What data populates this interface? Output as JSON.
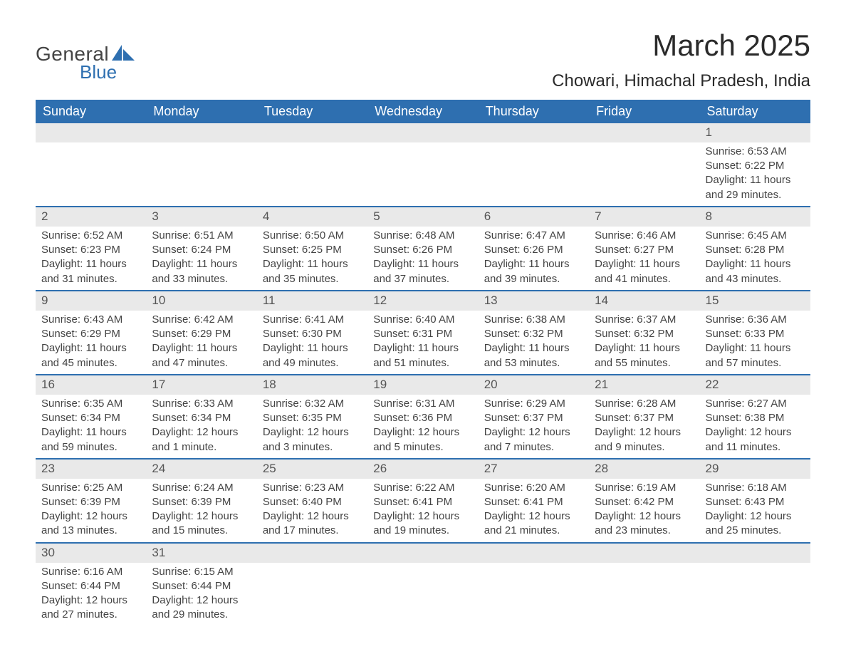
{
  "logo": {
    "text1": "General",
    "text2": "Blue"
  },
  "title": "March 2025",
  "subtitle": "Chowari, Himachal Pradesh, India",
  "colors": {
    "header_bg": "#2e6fb0",
    "header_text": "#ffffff",
    "daynum_bg": "#e9e9e9",
    "row_border": "#2e6fb0",
    "text": "#3a3a3a",
    "logo_blue": "#2e6fb0"
  },
  "weekdays": [
    "Sunday",
    "Monday",
    "Tuesday",
    "Wednesday",
    "Thursday",
    "Friday",
    "Saturday"
  ],
  "weeks": [
    [
      null,
      null,
      null,
      null,
      null,
      null,
      {
        "day": "1",
        "sunrise": "Sunrise: 6:53 AM",
        "sunset": "Sunset: 6:22 PM",
        "daylight1": "Daylight: 11 hours",
        "daylight2": "and 29 minutes."
      }
    ],
    [
      {
        "day": "2",
        "sunrise": "Sunrise: 6:52 AM",
        "sunset": "Sunset: 6:23 PM",
        "daylight1": "Daylight: 11 hours",
        "daylight2": "and 31 minutes."
      },
      {
        "day": "3",
        "sunrise": "Sunrise: 6:51 AM",
        "sunset": "Sunset: 6:24 PM",
        "daylight1": "Daylight: 11 hours",
        "daylight2": "and 33 minutes."
      },
      {
        "day": "4",
        "sunrise": "Sunrise: 6:50 AM",
        "sunset": "Sunset: 6:25 PM",
        "daylight1": "Daylight: 11 hours",
        "daylight2": "and 35 minutes."
      },
      {
        "day": "5",
        "sunrise": "Sunrise: 6:48 AM",
        "sunset": "Sunset: 6:26 PM",
        "daylight1": "Daylight: 11 hours",
        "daylight2": "and 37 minutes."
      },
      {
        "day": "6",
        "sunrise": "Sunrise: 6:47 AM",
        "sunset": "Sunset: 6:26 PM",
        "daylight1": "Daylight: 11 hours",
        "daylight2": "and 39 minutes."
      },
      {
        "day": "7",
        "sunrise": "Sunrise: 6:46 AM",
        "sunset": "Sunset: 6:27 PM",
        "daylight1": "Daylight: 11 hours",
        "daylight2": "and 41 minutes."
      },
      {
        "day": "8",
        "sunrise": "Sunrise: 6:45 AM",
        "sunset": "Sunset: 6:28 PM",
        "daylight1": "Daylight: 11 hours",
        "daylight2": "and 43 minutes."
      }
    ],
    [
      {
        "day": "9",
        "sunrise": "Sunrise: 6:43 AM",
        "sunset": "Sunset: 6:29 PM",
        "daylight1": "Daylight: 11 hours",
        "daylight2": "and 45 minutes."
      },
      {
        "day": "10",
        "sunrise": "Sunrise: 6:42 AM",
        "sunset": "Sunset: 6:29 PM",
        "daylight1": "Daylight: 11 hours",
        "daylight2": "and 47 minutes."
      },
      {
        "day": "11",
        "sunrise": "Sunrise: 6:41 AM",
        "sunset": "Sunset: 6:30 PM",
        "daylight1": "Daylight: 11 hours",
        "daylight2": "and 49 minutes."
      },
      {
        "day": "12",
        "sunrise": "Sunrise: 6:40 AM",
        "sunset": "Sunset: 6:31 PM",
        "daylight1": "Daylight: 11 hours",
        "daylight2": "and 51 minutes."
      },
      {
        "day": "13",
        "sunrise": "Sunrise: 6:38 AM",
        "sunset": "Sunset: 6:32 PM",
        "daylight1": "Daylight: 11 hours",
        "daylight2": "and 53 minutes."
      },
      {
        "day": "14",
        "sunrise": "Sunrise: 6:37 AM",
        "sunset": "Sunset: 6:32 PM",
        "daylight1": "Daylight: 11 hours",
        "daylight2": "and 55 minutes."
      },
      {
        "day": "15",
        "sunrise": "Sunrise: 6:36 AM",
        "sunset": "Sunset: 6:33 PM",
        "daylight1": "Daylight: 11 hours",
        "daylight2": "and 57 minutes."
      }
    ],
    [
      {
        "day": "16",
        "sunrise": "Sunrise: 6:35 AM",
        "sunset": "Sunset: 6:34 PM",
        "daylight1": "Daylight: 11 hours",
        "daylight2": "and 59 minutes."
      },
      {
        "day": "17",
        "sunrise": "Sunrise: 6:33 AM",
        "sunset": "Sunset: 6:34 PM",
        "daylight1": "Daylight: 12 hours",
        "daylight2": "and 1 minute."
      },
      {
        "day": "18",
        "sunrise": "Sunrise: 6:32 AM",
        "sunset": "Sunset: 6:35 PM",
        "daylight1": "Daylight: 12 hours",
        "daylight2": "and 3 minutes."
      },
      {
        "day": "19",
        "sunrise": "Sunrise: 6:31 AM",
        "sunset": "Sunset: 6:36 PM",
        "daylight1": "Daylight: 12 hours",
        "daylight2": "and 5 minutes."
      },
      {
        "day": "20",
        "sunrise": "Sunrise: 6:29 AM",
        "sunset": "Sunset: 6:37 PM",
        "daylight1": "Daylight: 12 hours",
        "daylight2": "and 7 minutes."
      },
      {
        "day": "21",
        "sunrise": "Sunrise: 6:28 AM",
        "sunset": "Sunset: 6:37 PM",
        "daylight1": "Daylight: 12 hours",
        "daylight2": "and 9 minutes."
      },
      {
        "day": "22",
        "sunrise": "Sunrise: 6:27 AM",
        "sunset": "Sunset: 6:38 PM",
        "daylight1": "Daylight: 12 hours",
        "daylight2": "and 11 minutes."
      }
    ],
    [
      {
        "day": "23",
        "sunrise": "Sunrise: 6:25 AM",
        "sunset": "Sunset: 6:39 PM",
        "daylight1": "Daylight: 12 hours",
        "daylight2": "and 13 minutes."
      },
      {
        "day": "24",
        "sunrise": "Sunrise: 6:24 AM",
        "sunset": "Sunset: 6:39 PM",
        "daylight1": "Daylight: 12 hours",
        "daylight2": "and 15 minutes."
      },
      {
        "day": "25",
        "sunrise": "Sunrise: 6:23 AM",
        "sunset": "Sunset: 6:40 PM",
        "daylight1": "Daylight: 12 hours",
        "daylight2": "and 17 minutes."
      },
      {
        "day": "26",
        "sunrise": "Sunrise: 6:22 AM",
        "sunset": "Sunset: 6:41 PM",
        "daylight1": "Daylight: 12 hours",
        "daylight2": "and 19 minutes."
      },
      {
        "day": "27",
        "sunrise": "Sunrise: 6:20 AM",
        "sunset": "Sunset: 6:41 PM",
        "daylight1": "Daylight: 12 hours",
        "daylight2": "and 21 minutes."
      },
      {
        "day": "28",
        "sunrise": "Sunrise: 6:19 AM",
        "sunset": "Sunset: 6:42 PM",
        "daylight1": "Daylight: 12 hours",
        "daylight2": "and 23 minutes."
      },
      {
        "day": "29",
        "sunrise": "Sunrise: 6:18 AM",
        "sunset": "Sunset: 6:43 PM",
        "daylight1": "Daylight: 12 hours",
        "daylight2": "and 25 minutes."
      }
    ],
    [
      {
        "day": "30",
        "sunrise": "Sunrise: 6:16 AM",
        "sunset": "Sunset: 6:44 PM",
        "daylight1": "Daylight: 12 hours",
        "daylight2": "and 27 minutes."
      },
      {
        "day": "31",
        "sunrise": "Sunrise: 6:15 AM",
        "sunset": "Sunset: 6:44 PM",
        "daylight1": "Daylight: 12 hours",
        "daylight2": "and 29 minutes."
      },
      null,
      null,
      null,
      null,
      null
    ]
  ]
}
